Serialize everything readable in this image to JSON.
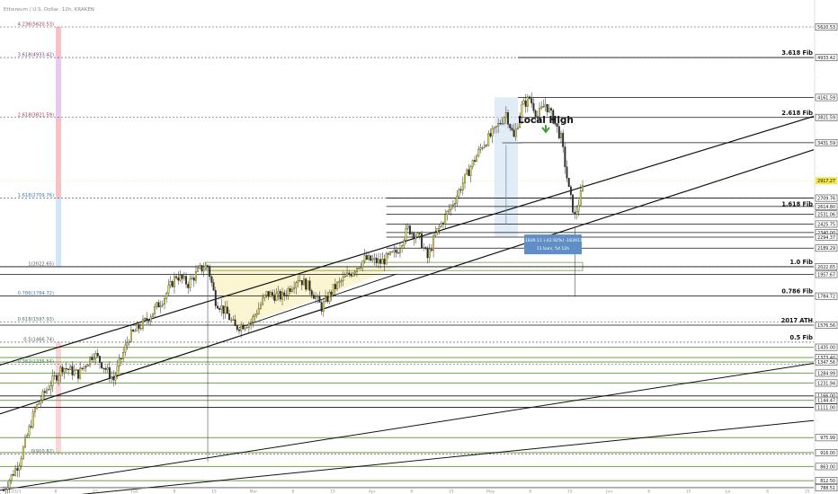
{
  "header": {
    "symbol": "Ethereum / U.S. Dollar, 12h, KRAKEN"
  },
  "annotation": {
    "local_high": "Local High",
    "measure_line1": "-1839.11 (-42.92%) -183911",
    "measure_line2": "11 bars, 5d 12h"
  },
  "colors": {
    "up": "#f2e64a",
    "down": "#2b2b2b",
    "hline": "#111111",
    "green_line": "#7fa860",
    "fib_red": "#f6c2c8",
    "fib_purple": "#e7c8ee",
    "fib_blue": "#cfe6f7",
    "arrow_green": "#4a9a3a",
    "measure_box": "#5f8fc6",
    "price_tag": "#f2e64a"
  },
  "chart_data": {
    "type": "candlestick",
    "title": "",
    "xlabel": "",
    "ylabel": "",
    "ylim": [
      700,
      5900
    ],
    "price_scale": [
      {
        "value": 5620.53,
        "text": "5620.53"
      },
      {
        "value": 4933.42,
        "text": "4933.42"
      },
      {
        "value": 4161.59,
        "text": "4161.59"
      },
      {
        "value": 3821.59,
        "text": "3821.59"
      },
      {
        "value": 3431.59,
        "text": "3431.59"
      },
      {
        "value": 2917.27,
        "text": "2917.27",
        "current": true
      },
      {
        "value": 2709.76,
        "text": "2709.76"
      },
      {
        "value": 2614.8,
        "text": "2614.80"
      },
      {
        "value": 2531.06,
        "text": "2531.06"
      },
      {
        "value": 2425.75,
        "text": "2425.75"
      },
      {
        "value": 2340.0,
        "text": "2340.00"
      },
      {
        "value": 2294.37,
        "text": "2294.37"
      },
      {
        "value": 2189.29,
        "text": "2189.29"
      },
      {
        "value": 2022.65,
        "text": "2022.65"
      },
      {
        "value": 1957.67,
        "text": "1957.67"
      },
      {
        "value": 1784.72,
        "text": "1784.72"
      },
      {
        "value": 1576.56,
        "text": "1576.56"
      },
      {
        "value": 1435.0,
        "text": "1435.00"
      },
      {
        "value": 1373.4,
        "text": "1373.40"
      },
      {
        "value": 1347.56,
        "text": "1347.56"
      },
      {
        "value": 1284.99,
        "text": "1284.99"
      },
      {
        "value": 1231.94,
        "text": "1231.94"
      },
      {
        "value": 1166.0,
        "text": "1166.00"
      },
      {
        "value": 1144.47,
        "text": "1144.47"
      },
      {
        "value": 1111.0,
        "text": "1111.00"
      },
      {
        "value": 975.99,
        "text": "975.99"
      },
      {
        "value": 916.0,
        "text": "916.00"
      },
      {
        "value": 863.0,
        "text": "863.00"
      },
      {
        "value": 812.5,
        "text": "812.50"
      },
      {
        "value": 788.51,
        "text": "788.51"
      }
    ],
    "fib_levels": [
      {
        "value": 5620.53,
        "text": "4.236(5620.53)"
      },
      {
        "value": 4933.42,
        "text": "3.618(4933.42)"
      },
      {
        "value": 3821.59,
        "text": "2.618(3821.59)"
      },
      {
        "value": 2709.76,
        "text": "1.618(2709.76)"
      },
      {
        "value": 2022.65,
        "text": "1(2022.65)"
      },
      {
        "value": 1784.72,
        "text": "0.786(1784.72)"
      },
      {
        "value": 1597.93,
        "text": "0.618(1597.93)"
      },
      {
        "value": 1466.74,
        "text": "0.5(1466.74)"
      },
      {
        "value": 1335.54,
        "text": "0.382(1335.54)"
      },
      {
        "value": 910.82,
        "text": "0(910.82)"
      }
    ],
    "right_labels": [
      {
        "value": 4933.42,
        "text": "3.618 Fib"
      },
      {
        "value": 3821.59,
        "text": "2.618 Fib"
      },
      {
        "value": 2709.76,
        "text": "1.618 Fib"
      },
      {
        "value": 2022.65,
        "text": "1.0 Fib"
      },
      {
        "value": 1784.72,
        "text": "0.786 Fib"
      },
      {
        "value": 1576.56,
        "text": "2017 ATH"
      },
      {
        "value": 1466.74,
        "text": "0.5 Fib"
      }
    ],
    "x_ticks": [
      "2021",
      "8",
      "15",
      "Feb",
      "8",
      "15",
      "Mar",
      "8",
      "15",
      "Apr",
      "8",
      "15",
      "May",
      "8",
      "15",
      "Jun",
      "8",
      "15",
      "Jul",
      "8",
      "15"
    ],
    "candles_count": 296,
    "anchors": [
      [
        0,
        780
      ],
      [
        8,
        880
      ],
      [
        16,
        1100
      ],
      [
        22,
        1200
      ],
      [
        30,
        1320
      ],
      [
        38,
        1280
      ],
      [
        46,
        1400
      ],
      [
        56,
        1250
      ],
      [
        64,
        1500
      ],
      [
        72,
        1600
      ],
      [
        82,
        1780
      ],
      [
        88,
        1950
      ],
      [
        94,
        1880
      ],
      [
        100,
        2000
      ],
      [
        104,
        2030
      ],
      [
        108,
        1750
      ],
      [
        114,
        1650
      ],
      [
        118,
        1560
      ],
      [
        126,
        1600
      ],
      [
        134,
        1800
      ],
      [
        142,
        1780
      ],
      [
        150,
        1930
      ],
      [
        156,
        1850
      ],
      [
        162,
        1700
      ],
      [
        168,
        1840
      ],
      [
        176,
        1960
      ],
      [
        184,
        2090
      ],
      [
        192,
        2060
      ],
      [
        200,
        2150
      ],
      [
        206,
        2380
      ],
      [
        212,
        2280
      ],
      [
        216,
        2100
      ],
      [
        220,
        2320
      ],
      [
        230,
        2700
      ],
      [
        238,
        3100
      ],
      [
        244,
        3400
      ],
      [
        250,
        3600
      ],
      [
        256,
        3900
      ],
      [
        260,
        3500
      ],
      [
        264,
        4000
      ],
      [
        268,
        4150
      ],
      [
        272,
        3850
      ],
      [
        276,
        4050
      ],
      [
        280,
        3800
      ],
      [
        284,
        3500
      ],
      [
        288,
        2800
      ],
      [
        291,
        2500
      ],
      [
        296,
        2920
      ]
    ]
  }
}
